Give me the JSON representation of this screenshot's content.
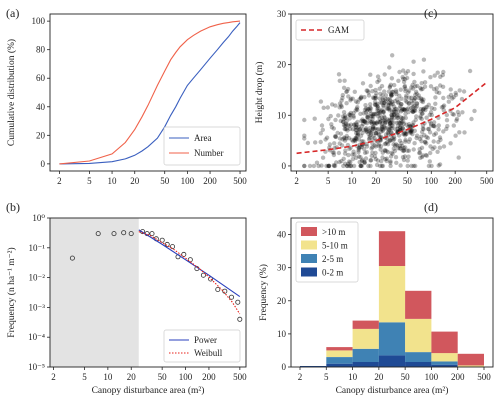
{
  "colors": {
    "area": "#3a5fbf",
    "number": "#f0624a",
    "gam": "#d62728",
    "scatter": "#000000",
    "shade": "#e3e3e3",
    "open": "#333333",
    "power": "#2a3fbd",
    "weibull": "#e8201a",
    "bar_gt10": "#d1575d",
    "bar_5_10": "#f2e38d",
    "bar_2_5": "#3f82b4",
    "bar_0_2": "#1f4a95"
  },
  "chart_data": [
    {
      "panel_label": "(a)",
      "type": "line",
      "xlabel": "",
      "ylabel": "Cumulative distribution (%)",
      "xscale": "log",
      "xlim": [
        1.5,
        600
      ],
      "ylim": [
        -5,
        105
      ],
      "xticks": [
        2,
        5,
        10,
        20,
        50,
        100,
        200,
        500
      ],
      "xtick_labels": [
        "2",
        "5",
        "10",
        "20",
        "50",
        "100",
        "200",
        "500"
      ],
      "yticks": [
        0,
        20,
        40,
        60,
        80,
        100
      ],
      "ytick_labels": [
        "0",
        "20",
        "40",
        "60",
        "80",
        "100"
      ],
      "legend_position": "lower-right",
      "series": [
        {
          "name": "Area",
          "x": [
            2,
            5,
            10,
            15,
            20,
            25,
            30,
            40,
            50,
            60,
            70,
            80,
            100,
            120,
            150,
            200,
            250,
            300,
            350,
            400,
            450,
            500
          ],
          "y": [
            0,
            0.3,
            1.5,
            3.5,
            6,
            9,
            12,
            18,
            26,
            34,
            40,
            46,
            55,
            60,
            66,
            74,
            80,
            85,
            89,
            93,
            96,
            99
          ]
        },
        {
          "name": "Number",
          "x": [
            2,
            5,
            10,
            15,
            20,
            25,
            30,
            40,
            50,
            60,
            70,
            80,
            100,
            120,
            150,
            200,
            250,
            300,
            350,
            400,
            450,
            500
          ],
          "y": [
            0,
            2,
            7,
            15,
            24,
            33,
            41,
            55,
            65,
            73,
            78,
            82,
            87,
            90,
            93,
            96,
            97.5,
            98.5,
            99,
            99.5,
            99.8,
            100
          ]
        }
      ]
    },
    {
      "panel_label": "(b)",
      "type": "scatter",
      "xlabel": "Canopy disturbance area (m²)",
      "ylabel": "Frequency (n ha⁻¹ m⁻²)",
      "xscale": "log",
      "yscale": "log",
      "xlim": [
        1.8,
        600
      ],
      "ylim": [
        1e-05,
        1
      ],
      "shaded_x_range": [
        1.8,
        25
      ],
      "xticks": [
        2,
        5,
        10,
        20,
        50,
        100,
        200,
        500
      ],
      "xtick_labels": [
        "2",
        "5",
        "10",
        "20",
        "50",
        "100",
        "200",
        "500"
      ],
      "yticks": [
        1e-05,
        0.0001,
        0.001,
        0.01,
        0.1,
        1
      ],
      "ytick_labels": [
        "10⁻⁵",
        "10⁻⁴",
        "10⁻³",
        "10⁻²",
        "10⁻¹",
        "10⁰"
      ],
      "legend_position": "lower-right",
      "points": {
        "x": [
          3.5,
          7.5,
          12,
          16,
          20,
          28,
          32,
          37,
          42,
          50,
          58,
          68,
          80,
          95,
          115,
          140,
          170,
          210,
          260,
          320,
          390,
          470,
          500
        ],
        "y": [
          0.045,
          0.3,
          0.3,
          0.32,
          0.3,
          0.35,
          0.3,
          0.3,
          0.2,
          0.18,
          0.13,
          0.11,
          0.05,
          0.06,
          0.04,
          0.02,
          0.012,
          0.009,
          0.004,
          0.0035,
          0.0022,
          0.0015,
          0.0004
        ]
      },
      "series": [
        {
          "name": "Power",
          "style": "solid",
          "x": [
            25,
            50,
            100,
            200,
            500
          ],
          "y": [
            0.4,
            0.13,
            0.04,
            0.012,
            0.0023
          ]
        },
        {
          "name": "Weibull",
          "style": "dotted",
          "x": [
            25,
            35,
            50,
            70,
            100,
            150,
            200,
            300,
            400,
            500
          ],
          "y": [
            0.35,
            0.26,
            0.15,
            0.09,
            0.045,
            0.02,
            0.0105,
            0.0037,
            0.0015,
            0.0006
          ]
        }
      ]
    },
    {
      "panel_label": "(c)",
      "type": "scatter",
      "xlabel": "",
      "ylabel": "Height drop (m)",
      "xscale": "log",
      "xlim": [
        1.7,
        600
      ],
      "ylim": [
        -1,
        30
      ],
      "xticks": [
        2,
        5,
        10,
        20,
        50,
        100,
        200,
        500
      ],
      "xtick_labels": [
        "2",
        "5",
        "10",
        "20",
        "50",
        "100",
        "200",
        "500"
      ],
      "yticks": [
        0,
        10,
        20,
        30
      ],
      "ytick_labels": [
        "0",
        "10",
        "20",
        "30"
      ],
      "legend_position": "top-left",
      "point_count": 820,
      "point_x_range": [
        2.5,
        500
      ],
      "point_y_range": [
        0,
        28
      ],
      "series": [
        {
          "name": "GAM",
          "style": "dashed",
          "x": [
            2,
            5,
            10,
            20,
            50,
            100,
            200,
            500
          ],
          "y": [
            2.5,
            3.2,
            3.9,
            5,
            7.2,
            9.2,
            11.5,
            16.5
          ]
        }
      ]
    },
    {
      "panel_label": "(d)",
      "type": "bar",
      "stacked": true,
      "xlabel": "Canopy disturbance area (m²)",
      "ylabel": "Frequency (%)",
      "ylim": [
        0,
        45
      ],
      "yticks": [
        0,
        10,
        20,
        30,
        40
      ],
      "ytick_labels": [
        "0",
        "10",
        "20",
        "30",
        "40"
      ],
      "bin_edges": [
        "2",
        "5",
        "10",
        "20",
        "50",
        "100",
        "200",
        "500"
      ],
      "legend_position": "top-left",
      "series": [
        {
          "name": "0-2 m",
          "values": [
            0.3,
            1,
            1.5,
            3.5,
            1.5,
            0.7,
            0
          ]
        },
        {
          "name": "2-5 m",
          "values": [
            0,
            2,
            4,
            10,
            3,
            1,
            0
          ]
        },
        {
          "name": "5-10 m",
          "values": [
            0,
            2,
            6,
            17,
            10,
            2.5,
            0.5
          ]
        },
        {
          "name": ">10 m",
          "values": [
            0,
            1,
            2.5,
            10.5,
            8.5,
            6.5,
            3.5
          ]
        }
      ]
    }
  ]
}
